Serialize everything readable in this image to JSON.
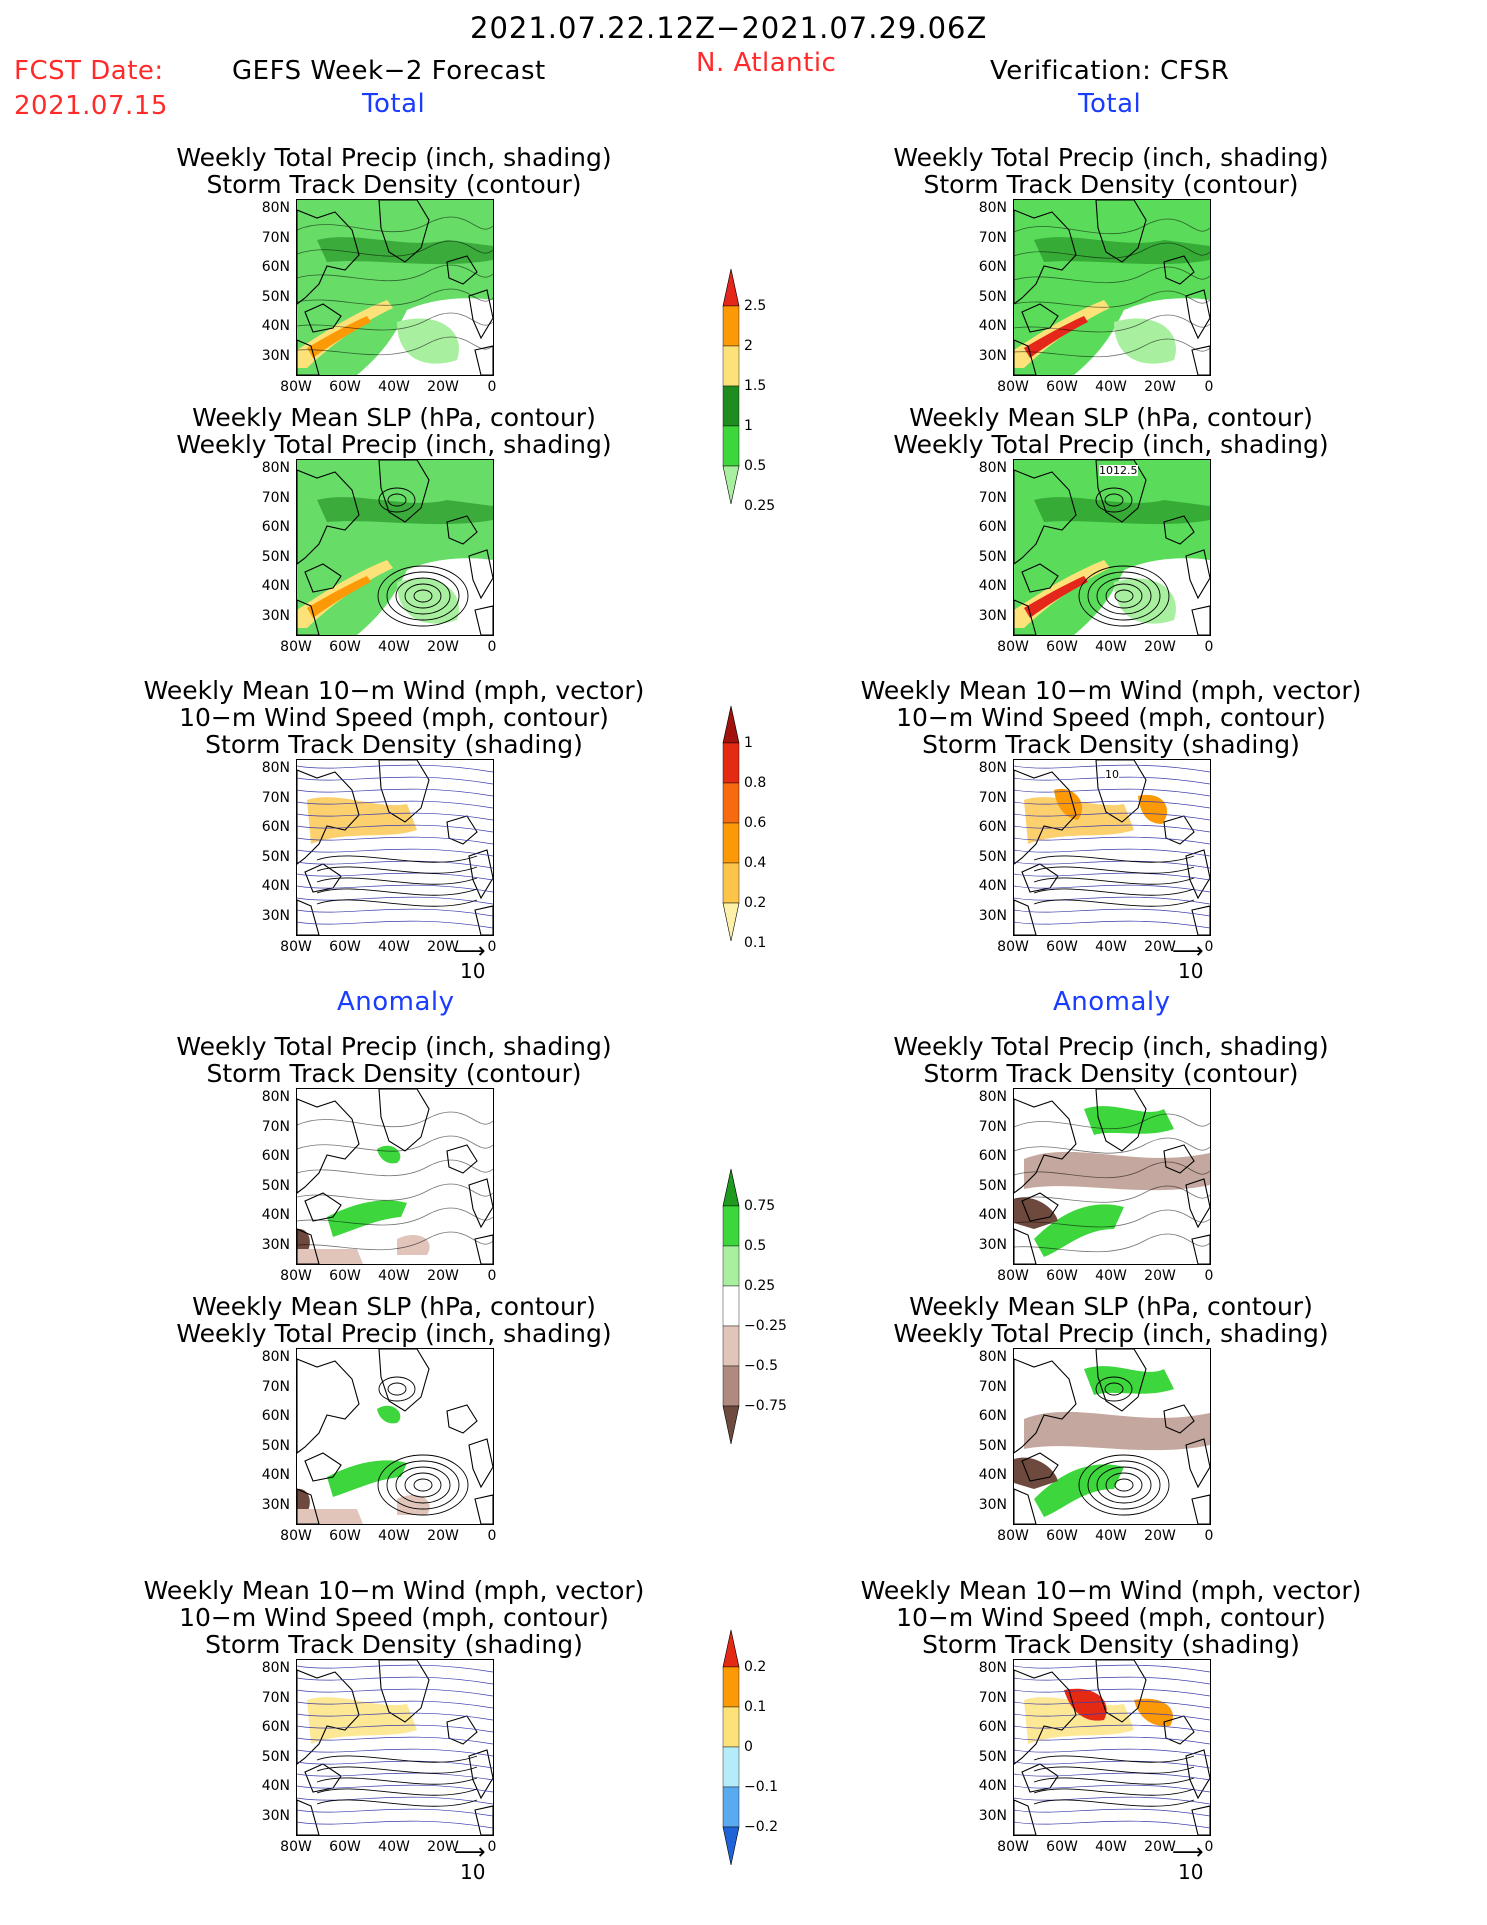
{
  "header": {
    "date_range": "2021.07.22.12Z−2021.07.29.06Z",
    "fcst_date_label": "FCST Date:",
    "fcst_date_value": "2021.07.15",
    "left_title": "GEFS Week−2 Forecast",
    "region": "N. Atlantic",
    "right_title": "Verification: CFSR"
  },
  "sections": {
    "total": "Total",
    "anomaly": "Anomaly"
  },
  "panel_titles": {
    "precip": [
      "Weekly Total Precip (inch, shading)",
      "Storm Track Density (contour)"
    ],
    "slp": [
      "Weekly Mean SLP (hPa, contour)",
      "Weekly Total Precip (inch, shading)"
    ],
    "wind": [
      "Weekly Mean 10−m Wind (mph, vector)",
      "10−m Wind Speed (mph, contour)",
      "Storm Track Density (shading)"
    ]
  },
  "axes": {
    "lat_ticks": [
      "80N",
      "70N",
      "60N",
      "50N",
      "40N",
      "30N"
    ],
    "lon_ticks": [
      "80W",
      "60W",
      "40W",
      "20W",
      "0"
    ]
  },
  "map_labels": {
    "slp_contour_label": "1012.5",
    "wind_contour_label": "10"
  },
  "vector_ref": "10",
  "colorbars": {
    "precip_total": {
      "labels": [
        "2.5",
        "2",
        "1.5",
        "1",
        "0.5",
        "0.25"
      ],
      "colors": [
        "#e5261a",
        "#fb9a06",
        "#fde27a",
        "#1e8c1e",
        "#3dd63d",
        "#a8f0a0"
      ]
    },
    "density_total": {
      "labels": [
        "1",
        "0.8",
        "0.6",
        "0.4",
        "0.2",
        "0.1"
      ],
      "colors": [
        "#a3110c",
        "#e52a14",
        "#f86a10",
        "#fb9a06",
        "#fdc44a",
        "#fdf0a8"
      ]
    },
    "precip_anom": {
      "labels": [
        "0.75",
        "0.5",
        "0.25",
        "−0.25",
        "−0.5",
        "−0.75"
      ],
      "colors": [
        "#1e9a1e",
        "#3dd63d",
        "#a8f0a0",
        "#ffffff",
        "#e1c4ba",
        "#b08a7e",
        "#6e4a3e"
      ]
    },
    "density_anom": {
      "labels": [
        "0.2",
        "0.1",
        "0",
        "−0.1",
        "−0.2"
      ],
      "colors": [
        "#e52a14",
        "#fb9a06",
        "#fde27a",
        "#b4ecfa",
        "#5aaaf0",
        "#1e64d6"
      ]
    }
  }
}
